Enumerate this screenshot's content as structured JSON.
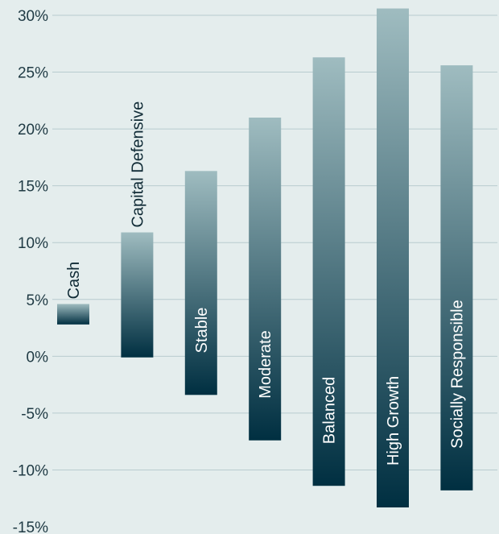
{
  "chart_data": {
    "type": "bar",
    "subtype": "floating-range",
    "title": "",
    "xlabel": "",
    "ylabel": "",
    "ylim": [
      -15,
      30
    ],
    "yticks": [
      30,
      25,
      20,
      15,
      10,
      5,
      0,
      -5,
      -10,
      -15
    ],
    "ytick_labels": [
      "30%",
      "25%",
      "20%",
      "15%",
      "10%",
      "5%",
      "0%",
      "-5%",
      "-10%",
      "-15%"
    ],
    "grid": true,
    "categories": [
      "Cash",
      "Capital Defensive",
      "Stable",
      "Moderate",
      "Balanced",
      "High Growth",
      "Socially Responsible"
    ],
    "low": [
      2.8,
      -0.1,
      -3.4,
      -7.4,
      -11.4,
      -13.3,
      -11.8
    ],
    "high": [
      4.6,
      10.9,
      16.3,
      21.0,
      26.3,
      30.6,
      25.6
    ],
    "label_position": [
      "above",
      "above",
      "inside",
      "inside",
      "inside",
      "inside",
      "inside"
    ],
    "colors": {
      "bar_top": "#9fbcc0",
      "bar_bottom": "#002f41",
      "grid": "#b8cccf",
      "background": "#e4eded"
    }
  }
}
